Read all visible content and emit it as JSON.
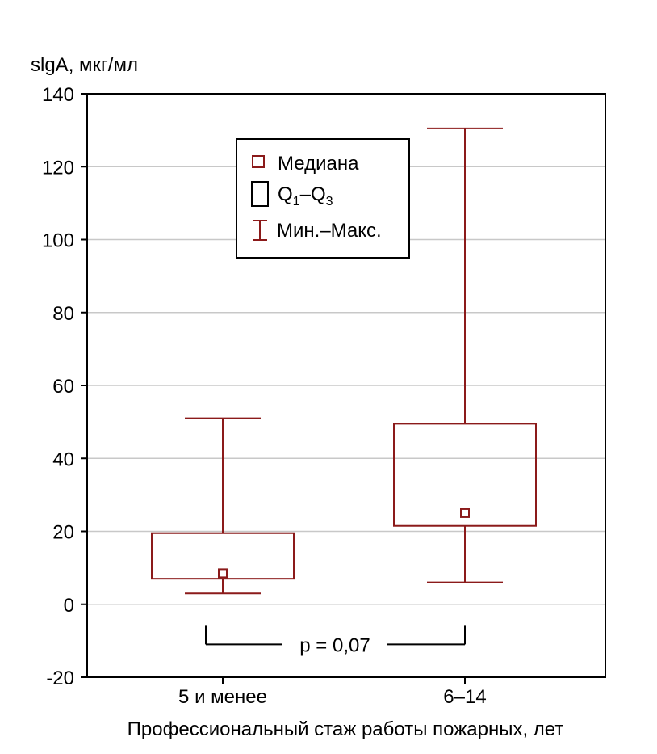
{
  "chart_data": {
    "type": "box",
    "ylabel": "slgA, мкг/мл",
    "xlabel": "Профессиональный стаж работы пожарных, лет",
    "ylim": [
      -20,
      140
    ],
    "yticks": [
      "140",
      "120",
      "100",
      "80",
      "60",
      "40",
      "20",
      "0",
      "-20"
    ],
    "ytick_values": [
      140,
      120,
      100,
      80,
      60,
      40,
      20,
      0,
      -20
    ],
    "grid": true,
    "categories": [
      "5 и менее",
      "6–14"
    ],
    "boxes": [
      {
        "category": "5 и менее",
        "min": 3,
        "q1": 7,
        "median": 8.5,
        "q3": 19.5,
        "max": 51
      },
      {
        "category": "6–14",
        "min": 6,
        "q1": 21.5,
        "median": 25,
        "q3": 49.5,
        "max": 130.5
      }
    ],
    "legend": {
      "position": "top-center",
      "median_label": "Медиана",
      "quartile_label_base": "Q",
      "quartile_sub1": "1",
      "quartile_dash": "–",
      "quartile_sub3": "3",
      "range_label": "Мин.–Макс."
    },
    "annotation": {
      "text": "p = 0,07",
      "y": -11
    },
    "colors": {
      "series": "#8b1a1a",
      "grid": "#c8c8c8",
      "axis": "#000000"
    }
  }
}
